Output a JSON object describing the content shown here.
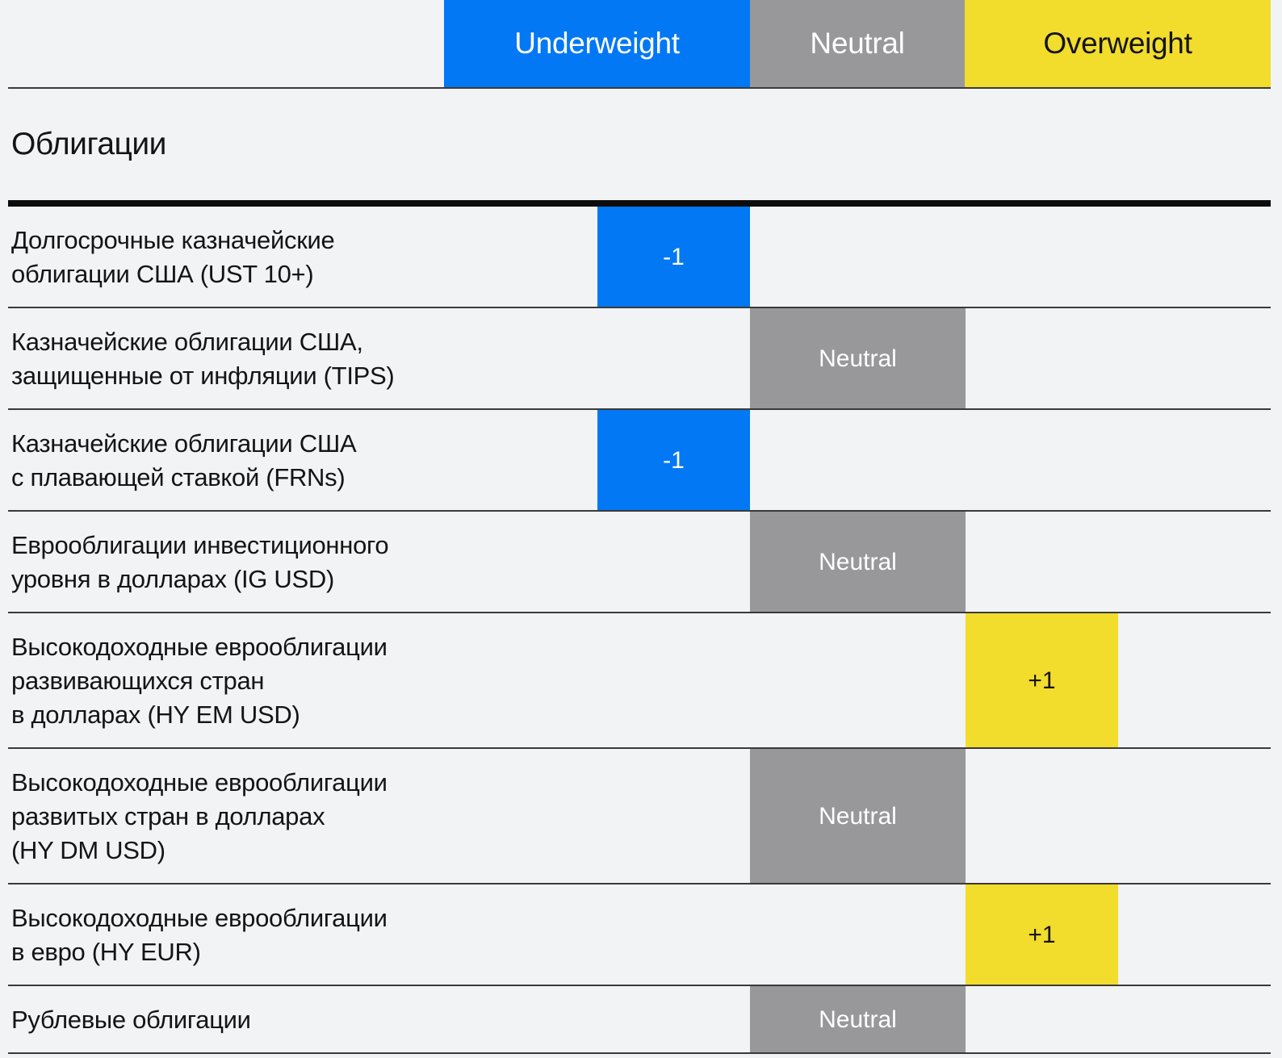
{
  "header": {
    "columns": [
      {
        "id": "underweight",
        "label": "Underweight"
      },
      {
        "id": "neutral",
        "label": "Neutral"
      },
      {
        "id": "overweight",
        "label": "Overweight"
      }
    ]
  },
  "section": {
    "title": "Облигации"
  },
  "table": {
    "rows": [
      {
        "label": "Долгосрочные казначейские\nоблигации США (UST 10+)",
        "rating": "underweight",
        "cell_text": "-1"
      },
      {
        "label": "Казначейские облигации США,\nзащищенные от инфляции (TIPS)",
        "rating": "neutral",
        "cell_text": "Neutral"
      },
      {
        "label": "Казначейские облигации США\nс плавающей ставкой (FRNs)",
        "rating": "underweight",
        "cell_text": "-1"
      },
      {
        "label": "Еврооблигации инвестиционного\nуровня в долларах (IG USD)",
        "rating": "neutral",
        "cell_text": "Neutral"
      },
      {
        "label": "Высокодоходные еврооблигации\nразвивающихся стран\nв долларах (HY EM USD)",
        "rating": "overweight",
        "cell_text": "+1"
      },
      {
        "label": "Высокодоходные еврооблигации\nразвитых стран в долларах\n(HY DM USD)",
        "rating": "neutral",
        "cell_text": "Neutral"
      },
      {
        "label": "Высокодоходные еврооблигации\nв евро (HY EUR)",
        "rating": "overweight",
        "cell_text": "+1"
      },
      {
        "label": "Рублевые облигации",
        "rating": "neutral",
        "cell_text": "Neutral"
      }
    ]
  },
  "chart_data": {
    "type": "table",
    "title": "Облигации",
    "columns": [
      "Underweight",
      "Neutral",
      "Overweight"
    ],
    "scale_note": "positioning scale from underweight (-) to overweight (+)",
    "rows": [
      "Долгосрочные казначейские облигации США (UST 10+)",
      "Казначейские облигации США, защищенные от инфляции (TIPS)",
      "Казначейские облигации США с плавающей ставкой (FRNs)",
      "Еврооблигации инвестиционного уровня в долларах (IG USD)",
      "Высокодоходные еврооблигации развивающихся стран в долларах (HY EM USD)",
      "Высокодоходные еврооблигации развитых стран в долларах (HY DM USD)",
      "Высокодоходные еврооблигации в евро (HY EUR)",
      "Рублевые облигации"
    ],
    "values": [
      -1,
      0,
      -1,
      0,
      1,
      0,
      1,
      0
    ],
    "value_labels": [
      "-1",
      "Neutral",
      "-1",
      "Neutral",
      "+1",
      "Neutral",
      "+1",
      "Neutral"
    ]
  },
  "colors": {
    "underweight": "#0378f5",
    "neutral": "#98989a",
    "overweight": "#f2dc2c",
    "page_bg": "#f2f3f5",
    "line": "#3a3a3a",
    "thick_line": "#0c0c0c",
    "text": "#141414"
  }
}
